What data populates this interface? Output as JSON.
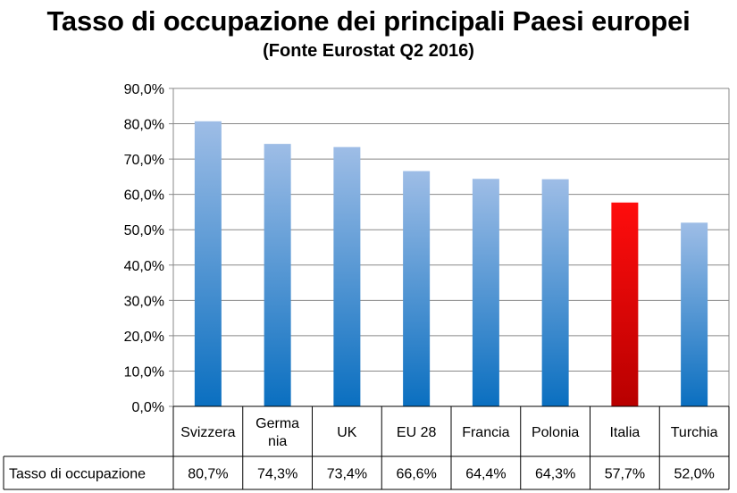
{
  "chart_data": {
    "type": "bar",
    "title": "Tasso di occupazione dei principali Paesi europei",
    "subtitle": "(Fonte Eurostat Q2 2016)",
    "categories": [
      [
        "Svizzera"
      ],
      [
        "Germa",
        "nia"
      ],
      [
        "UK"
      ],
      [
        "EU 28"
      ],
      [
        "Francia"
      ],
      [
        "Polonia"
      ],
      [
        "Italia"
      ],
      [
        "Turchia"
      ]
    ],
    "series": [
      {
        "name": "Tasso di occupazione",
        "values": [
          80.7,
          74.3,
          73.4,
          66.6,
          64.4,
          64.3,
          57.7,
          52.0
        ],
        "labels": [
          "80,7%",
          "74,3%",
          "73,4%",
          "66,6%",
          "64,4%",
          "64,3%",
          "57,7%",
          "52,0%"
        ]
      }
    ],
    "highlight_index": 6,
    "colors": {
      "bar_top": "#9ebde6",
      "bar_bottom": "#0a6fc0",
      "highlight_top": "#ff0d0d",
      "highlight_bottom": "#b80000",
      "grid": "#888888",
      "table_border": "#000000"
    },
    "ylim": [
      0,
      90
    ],
    "yticks": [
      "0,0%",
      "10,0%",
      "20,0%",
      "30,0%",
      "40,0%",
      "50,0%",
      "60,0%",
      "70,0%",
      "80,0%",
      "90,0%"
    ],
    "grid": true,
    "legend": "data table"
  }
}
